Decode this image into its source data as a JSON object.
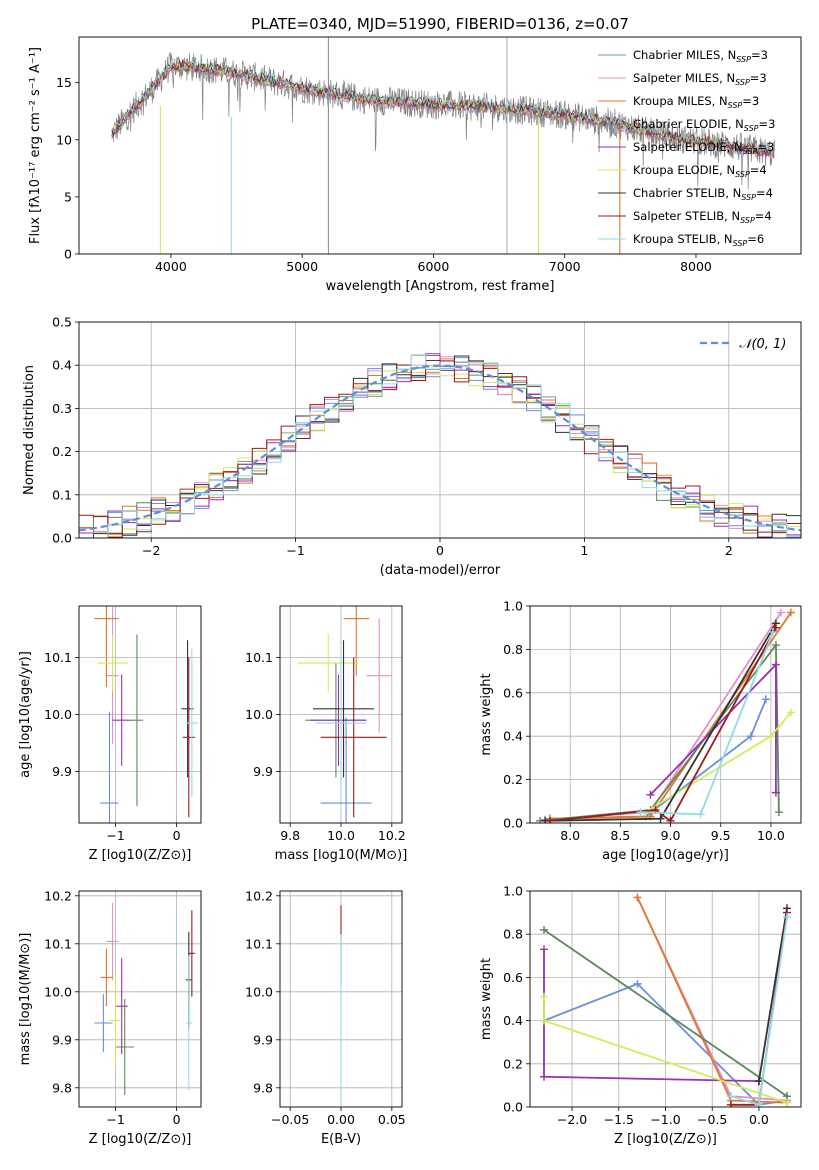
{
  "figure": {
    "title": "PLATE=0340, MJD=51990, FIBERID=0136, z=0.07"
  },
  "series_styles": [
    {
      "name": "Chabrier MILES",
      "nssp": "3",
      "color": "#6a8fdd"
    },
    {
      "name": "Salpeter MILES",
      "nssp": "3",
      "color": "#e58fc5"
    },
    {
      "name": "Kroupa MILES",
      "nssp": "3",
      "color": "#e0782c"
    },
    {
      "name": "Chabrier ELODIE",
      "nssp": "3",
      "color": "#5b8a5b"
    },
    {
      "name": "Salpeter ELODIE",
      "nssp": "3",
      "color": "#9b30b5"
    },
    {
      "name": "Kroupa ELODIE",
      "nssp": "4",
      "color": "#d4eb57"
    },
    {
      "name": "Chabrier STELIB",
      "nssp": "4",
      "color": "#333333"
    },
    {
      "name": "Salpeter STELIB",
      "nssp": "4",
      "color": "#9b1b1b"
    },
    {
      "name": "Kroupa STELIB",
      "nssp": "6",
      "color": "#8fdce8"
    }
  ],
  "chart_data": [
    {
      "id": "spectrum",
      "type": "line",
      "xlabel": "wavelength [Angstrom, rest frame]",
      "ylabel": "Flux [fλ10⁻¹⁷ erg cm⁻² s⁻¹ A⁻¹]",
      "xlim": [
        3300,
        8800
      ],
      "ylim": [
        0,
        19
      ],
      "xticks": [
        4000,
        5000,
        6000,
        7000,
        8000
      ],
      "yticks": [
        0,
        5,
        10,
        15
      ],
      "data_noise_color": "#808080",
      "data_envelope": {
        "x": [
          3550,
          3700,
          3900,
          4000,
          4300,
          4600,
          5000,
          5500,
          6000,
          6500,
          7000,
          7400,
          7800,
          8200,
          8600
        ],
        "y": [
          10.5,
          12.5,
          15,
          16.5,
          16.2,
          15.6,
          14.5,
          13.5,
          13.1,
          12.8,
          12.2,
          11.4,
          10.2,
          9.6,
          8.8
        ]
      },
      "spikes": [
        {
          "x": 6560,
          "ymin": 0,
          "ymax": 19,
          "color": "#b0b0b0"
        },
        {
          "x": 5200,
          "ymin": 0,
          "ymax": 19,
          "color": "#909090"
        },
        {
          "x": 4460,
          "ymin": 0,
          "ymax": 12,
          "color": "#8fdce8"
        },
        {
          "x": 3920,
          "ymin": 0,
          "ymax": 13,
          "color": "#d4eb57"
        },
        {
          "x": 6800,
          "ymin": 0,
          "ymax": 12,
          "color": "#d4eb57"
        },
        {
          "x": 7420,
          "ymin": 0,
          "ymax": 11,
          "color": "#e0782c"
        }
      ]
    },
    {
      "id": "residuals",
      "type": "line",
      "xlabel": "(data-model)/error",
      "ylabel": "Normed distribution",
      "xlim": [
        -2.5,
        2.5
      ],
      "ylim": [
        0,
        0.5
      ],
      "xticks": [
        -2,
        -1,
        0,
        1,
        2
      ],
      "yticks": [
        0.0,
        0.1,
        0.2,
        0.3,
        0.4,
        0.5
      ],
      "legend": {
        "label": "𝒩(0, 1)",
        "location": "top-right"
      },
      "gaussian": {
        "mean": 0,
        "sigma": 1,
        "color": "#5b8fdb"
      },
      "bin_width": 0.1
    },
    {
      "id": "age-vs-Z",
      "type": "scatter",
      "xlabel": "Z [log10(Z/Z⊙)]",
      "ylabel": "age  [log10(age/yr)]",
      "xlim": [
        -1.6,
        0.4
      ],
      "ylim": [
        9.81,
        10.19
      ],
      "xticks": [
        -1,
        0
      ],
      "yticks": [
        9.9,
        10.0,
        10.1
      ],
      "points": [
        {
          "series": 0,
          "x": -1.1,
          "y": 9.845,
          "xerr": 0.15,
          "yerr": 0.16
        },
        {
          "series": 1,
          "x": -1.05,
          "y": 10.068,
          "xerr": 0.1,
          "yerr": 0.12
        },
        {
          "series": 2,
          "x": -1.15,
          "y": 10.168,
          "xerr": 0.2,
          "yerr": 0.12
        },
        {
          "series": 3,
          "x": -0.65,
          "y": 9.99,
          "xerr": 0.1,
          "yerr": 0.15
        },
        {
          "series": 4,
          "x": -0.9,
          "y": 9.99,
          "xerr": 0.15,
          "yerr": 0.08
        },
        {
          "series": 5,
          "x": -1.05,
          "y": 10.09,
          "xerr": 0.25,
          "yerr": 0.05
        },
        {
          "series": 6,
          "x": 0.18,
          "y": 10.01,
          "xerr": 0.1,
          "yerr": 0.12
        },
        {
          "series": 7,
          "x": 0.2,
          "y": 9.96,
          "xerr": 0.1,
          "yerr": 0.14
        },
        {
          "series": 8,
          "x": 0.25,
          "y": 9.985,
          "xerr": 0.1,
          "yerr": 0.13
        }
      ]
    },
    {
      "id": "age-vs-mass",
      "type": "scatter",
      "xlabel": "mass [log10(M/M⊙)]",
      "ylabel": "",
      "xlim": [
        9.76,
        10.24
      ],
      "ylim": [
        9.81,
        10.19
      ],
      "xticks": [
        9.8,
        10.0,
        10.2
      ],
      "yticks": [
        9.9,
        10.0,
        10.1
      ],
      "points": [
        {
          "series": 0,
          "x": 10.02,
          "y": 9.845,
          "xerr": 0.1,
          "yerr": 0.15
        },
        {
          "series": 1,
          "x": 10.15,
          "y": 10.068,
          "xerr": 0.05,
          "yerr": 0.1
        },
        {
          "series": 2,
          "x": 10.06,
          "y": 10.168,
          "xerr": 0.05,
          "yerr": 0.1
        },
        {
          "series": 3,
          "x": 9.98,
          "y": 9.99,
          "xerr": 0.12,
          "yerr": 0.1
        },
        {
          "series": 4,
          "x": 9.99,
          "y": 9.99,
          "xerr": 0.11,
          "yerr": 0.08
        },
        {
          "series": 5,
          "x": 9.95,
          "y": 10.09,
          "xerr": 0.12,
          "yerr": 0.05
        },
        {
          "series": 6,
          "x": 10.01,
          "y": 10.01,
          "xerr": 0.12,
          "yerr": 0.12
        },
        {
          "series": 7,
          "x": 10.05,
          "y": 9.96,
          "xerr": 0.13,
          "yerr": 0.14
        },
        {
          "series": 8,
          "x": 10.0,
          "y": 9.985,
          "xerr": 0.1,
          "yerr": 0.13
        }
      ]
    },
    {
      "id": "massweight-vs-age",
      "type": "line",
      "xlabel": "age  [log10(age/yr)]",
      "ylabel": "mass weight",
      "xlim": [
        7.6,
        10.3
      ],
      "ylim": [
        0,
        1
      ],
      "xticks": [
        8.0,
        8.5,
        9.0,
        9.5,
        10.0
      ],
      "yticks": [
        0.0,
        0.2,
        0.4,
        0.6,
        0.8,
        1.0
      ],
      "series": [
        {
          "series": 0,
          "x": [
            7.8,
            8.75,
            9.8,
            9.95
          ],
          "y": [
            0.02,
            0.03,
            0.4,
            0.57
          ]
        },
        {
          "series": 1,
          "x": [
            7.75,
            8.8,
            10.1
          ],
          "y": [
            0.015,
            0.05,
            0.97
          ]
        },
        {
          "series": 2,
          "x": [
            7.8,
            8.8,
            10.2
          ],
          "y": [
            0.02,
            0.03,
            0.97
          ]
        },
        {
          "series": 3,
          "x": [
            7.7,
            8.8,
            10.05,
            10.08
          ],
          "y": [
            0.01,
            0.06,
            0.82,
            0.05
          ]
        },
        {
          "series": 4,
          "x": [
            8.8,
            10.05,
            10.05
          ],
          "y": [
            0.13,
            0.73,
            0.14
          ]
        },
        {
          "series": 5,
          "x": [
            8.75,
            10.0,
            10.2
          ],
          "y": [
            0.05,
            0.4,
            0.51
          ]
        },
        {
          "series": 6,
          "x": [
            7.75,
            8.9,
            10.05
          ],
          "y": [
            0.01,
            0.02,
            0.92
          ]
        },
        {
          "series": 7,
          "x": [
            7.8,
            8.85,
            9.0,
            10.05
          ],
          "y": [
            0.01,
            0.06,
            0.01,
            0.9
          ]
        },
        {
          "series": 8,
          "x": [
            8.7,
            9.3,
            10.02
          ],
          "y": [
            0.05,
            0.04,
            0.88
          ]
        }
      ]
    },
    {
      "id": "mass-vs-Z",
      "type": "scatter",
      "xlabel": "Z [log10(Z/Z⊙)]",
      "ylabel": "mass [log10(M/M⊙)]",
      "xlim": [
        -1.6,
        0.4
      ],
      "ylim": [
        9.76,
        10.21
      ],
      "xticks": [
        -1,
        0
      ],
      "yticks": [
        9.8,
        9.9,
        10.0,
        10.1,
        10.2
      ],
      "points": [
        {
          "series": 0,
          "x": -1.2,
          "y": 9.935,
          "xerr": 0.15,
          "yerr": 0.06
        },
        {
          "series": 1,
          "x": -1.05,
          "y": 10.105,
          "xerr": 0.1,
          "yerr": 0.08
        },
        {
          "series": 2,
          "x": -1.15,
          "y": 10.03,
          "xerr": 0.1,
          "yerr": 0.06
        },
        {
          "series": 3,
          "x": -0.85,
          "y": 9.885,
          "xerr": 0.15,
          "yerr": 0.1
        },
        {
          "series": 4,
          "x": -0.9,
          "y": 9.97,
          "xerr": 0.1,
          "yerr": 0.1
        },
        {
          "series": 5,
          "x": -1.0,
          "y": 9.94,
          "xerr": 0.1,
          "yerr": 0.1
        },
        {
          "series": 6,
          "x": 0.2,
          "y": 10.025,
          "xerr": 0.05,
          "yerr": 0.1
        },
        {
          "series": 7,
          "x": 0.25,
          "y": 10.08,
          "xerr": 0.05,
          "yerr": 0.09
        },
        {
          "series": 8,
          "x": 0.2,
          "y": 9.935,
          "xerr": 0.05,
          "yerr": 0.14
        }
      ]
    },
    {
      "id": "mass-vs-ebv",
      "type": "scatter",
      "xlabel": "E(B-V)",
      "ylabel": "",
      "xlim": [
        -0.06,
        0.06
      ],
      "ylim": [
        9.76,
        10.21
      ],
      "xticks": [
        -0.05,
        0.0,
        0.05
      ],
      "yticks": [
        9.8,
        9.9,
        10.0,
        10.1,
        10.2
      ],
      "points": [
        {
          "series": 7,
          "x": 0.0,
          "y": 10.1,
          "xerr": 0.0,
          "yerr": 0.08
        },
        {
          "series": 8,
          "x": 0.0,
          "y": 9.95,
          "xerr": 0.0,
          "yerr": 0.17
        }
      ]
    },
    {
      "id": "massweight-vs-Z",
      "type": "line",
      "xlabel": "Z [log10(Z/Z⊙)]",
      "ylabel": "mass weight",
      "xlim": [
        -2.45,
        0.45
      ],
      "ylim": [
        0,
        1
      ],
      "xticks": [
        -2.0,
        -1.5,
        -1.0,
        -0.5,
        0.0
      ],
      "yticks": [
        0.0,
        0.2,
        0.4,
        0.6,
        0.8,
        1.0
      ],
      "series": [
        {
          "series": 0,
          "x": [
            -2.3,
            -1.3,
            0.0,
            0.3
          ],
          "y": [
            0.4,
            0.57,
            0.01,
            0.03
          ]
        },
        {
          "series": 1,
          "x": [
            -1.3,
            -0.3,
            0.3
          ],
          "y": [
            0.97,
            0.05,
            0.03
          ]
        },
        {
          "series": 2,
          "x": [
            -1.3,
            -0.3,
            0.3
          ],
          "y": [
            0.97,
            0.03,
            0.02
          ]
        },
        {
          "series": 3,
          "x": [
            -2.3,
            0.3,
            0.3
          ],
          "y": [
            0.82,
            0.05,
            0.05
          ]
        },
        {
          "series": 4,
          "x": [
            -2.3,
            -2.3,
            0.0,
            0.0
          ],
          "y": [
            0.73,
            0.14,
            0.12,
            0.12
          ]
        },
        {
          "series": 5,
          "x": [
            -2.3,
            -2.3,
            0.3
          ],
          "y": [
            0.51,
            0.4,
            0.02
          ]
        },
        {
          "series": 6,
          "x": [
            0.0,
            0.3
          ],
          "y": [
            0.12,
            0.92
          ]
        },
        {
          "series": 7,
          "x": [
            -0.3,
            0.0,
            0.3
          ],
          "y": [
            0.01,
            0.01,
            0.9
          ]
        },
        {
          "series": 8,
          "x": [
            -0.3,
            0.0,
            0.3
          ],
          "y": [
            0.05,
            0.01,
            0.88
          ]
        }
      ]
    }
  ]
}
